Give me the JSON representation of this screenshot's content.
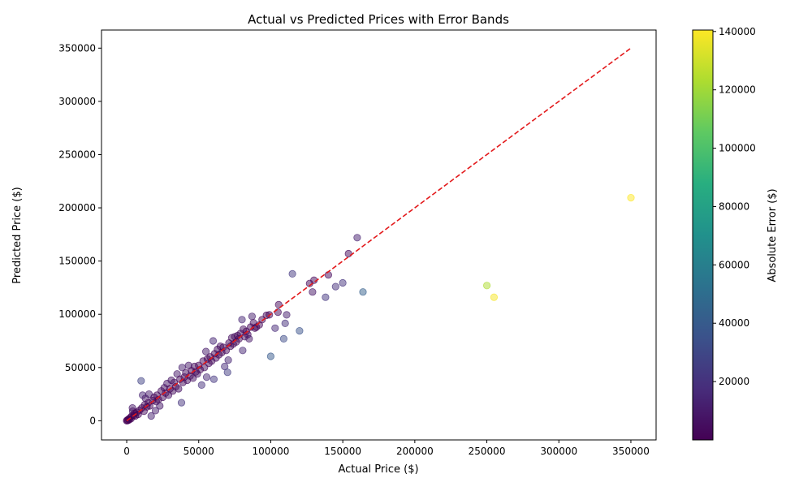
{
  "chart_data": {
    "type": "scatter",
    "title": "Actual vs Predicted Prices with Error Bands",
    "xlabel": "Actual Price ($)",
    "ylabel": "Predicted Price ($)",
    "colorbar_label": "Absolute Error ($)",
    "xlim": [
      -17500,
      367500
    ],
    "ylim": [
      -18000,
      367000
    ],
    "xticks": [
      0,
      50000,
      100000,
      150000,
      200000,
      250000,
      300000,
      350000
    ],
    "yticks": [
      0,
      50000,
      100000,
      150000,
      200000,
      250000,
      300000,
      350000
    ],
    "colorbar_range": [
      0,
      140500
    ],
    "colorbar_ticks": [
      20000,
      40000,
      60000,
      80000,
      100000,
      120000,
      140000
    ],
    "colormap": "viridis",
    "point_alpha": 0.5,
    "grid": false,
    "reference_line": {
      "style": "dashed",
      "color": "#e31a1c",
      "from": [
        0,
        0
      ],
      "to": [
        350000,
        350000
      ]
    },
    "points": [
      [
        0,
        0
      ],
      [
        300,
        500
      ],
      [
        800,
        300
      ],
      [
        1200,
        1500
      ],
      [
        1800,
        1000
      ],
      [
        2500,
        3000
      ],
      [
        3000,
        2000
      ],
      [
        3500,
        4500
      ],
      [
        4000,
        12000
      ],
      [
        4200,
        9000
      ],
      [
        5000,
        5000
      ],
      [
        5500,
        7000
      ],
      [
        6000,
        4500
      ],
      [
        7000,
        8000
      ],
      [
        8000,
        6000
      ],
      [
        9000,
        10000
      ],
      [
        10000,
        37500
      ],
      [
        10500,
        12000
      ],
      [
        11000,
        24000
      ],
      [
        12000,
        9000
      ],
      [
        12500,
        15000
      ],
      [
        13000,
        21000
      ],
      [
        14000,
        13000
      ],
      [
        15000,
        17000
      ],
      [
        15500,
        25000
      ],
      [
        16000,
        14000
      ],
      [
        17000,
        4500
      ],
      [
        18000,
        19000
      ],
      [
        19000,
        22000
      ],
      [
        20000,
        9500
      ],
      [
        20500,
        18000
      ],
      [
        21000,
        24000
      ],
      [
        22000,
        20000
      ],
      [
        23000,
        14000
      ],
      [
        24000,
        28000
      ],
      [
        25000,
        22000
      ],
      [
        26000,
        31000
      ],
      [
        27000,
        26000
      ],
      [
        28000,
        35000
      ],
      [
        29000,
        24000
      ],
      [
        30000,
        30000
      ],
      [
        31000,
        38000
      ],
      [
        32000,
        28000
      ],
      [
        33000,
        36000
      ],
      [
        34000,
        32000
      ],
      [
        35000,
        44000
      ],
      [
        36000,
        30000
      ],
      [
        37000,
        39000
      ],
      [
        38000,
        17000
      ],
      [
        38500,
        50000
      ],
      [
        39000,
        36000
      ],
      [
        40000,
        41000
      ],
      [
        41000,
        45000
      ],
      [
        42000,
        38000
      ],
      [
        43000,
        52000
      ],
      [
        44000,
        42000
      ],
      [
        45000,
        47000
      ],
      [
        46000,
        40000
      ],
      [
        47000,
        51000
      ],
      [
        48000,
        46000
      ],
      [
        49000,
        44000
      ],
      [
        50000,
        52000
      ],
      [
        51000,
        48000
      ],
      [
        52000,
        33500
      ],
      [
        53000,
        56000
      ],
      [
        54000,
        50000
      ],
      [
        55000,
        65000
      ],
      [
        55500,
        41000
      ],
      [
        56000,
        58000
      ],
      [
        57000,
        54000
      ],
      [
        58000,
        60000
      ],
      [
        59000,
        56000
      ],
      [
        60000,
        75000
      ],
      [
        60500,
        39000
      ],
      [
        61000,
        63000
      ],
      [
        62000,
        59000
      ],
      [
        63000,
        67000
      ],
      [
        64000,
        62000
      ],
      [
        65000,
        70000
      ],
      [
        66000,
        64000
      ],
      [
        67000,
        69000
      ],
      [
        68000,
        51000
      ],
      [
        69000,
        66000
      ],
      [
        70000,
        45500
      ],
      [
        70500,
        57000
      ],
      [
        71000,
        73000
      ],
      [
        72000,
        70000
      ],
      [
        73000,
        78000
      ],
      [
        74000,
        72000
      ],
      [
        75000,
        79000
      ],
      [
        76000,
        74000
      ],
      [
        77000,
        80000
      ],
      [
        78000,
        77000
      ],
      [
        79000,
        82000
      ],
      [
        80000,
        95000
      ],
      [
        80500,
        66000
      ],
      [
        81000,
        86000
      ],
      [
        82000,
        79000
      ],
      [
        83000,
        84000
      ],
      [
        84000,
        81000
      ],
      [
        85000,
        77000
      ],
      [
        86000,
        88000
      ],
      [
        87000,
        98000
      ],
      [
        88000,
        92000
      ],
      [
        89000,
        87000
      ],
      [
        90000,
        88000
      ],
      [
        92000,
        90000
      ],
      [
        94000,
        95000
      ],
      [
        97000,
        99000
      ],
      [
        99000,
        99500
      ],
      [
        100000,
        60500
      ],
      [
        103000,
        87000
      ],
      [
        105000,
        102000
      ],
      [
        105500,
        109000
      ],
      [
        109000,
        77000
      ],
      [
        110000,
        91500
      ],
      [
        111000,
        99500
      ],
      [
        115000,
        138000
      ],
      [
        120000,
        84500
      ],
      [
        127000,
        129000
      ],
      [
        129000,
        121000
      ],
      [
        130000,
        132000
      ],
      [
        138000,
        116000
      ],
      [
        140000,
        137000
      ],
      [
        145000,
        126000
      ],
      [
        150000,
        129500
      ],
      [
        154000,
        157000
      ],
      [
        160000,
        172000
      ],
      [
        164000,
        121000
      ],
      [
        250000,
        127000
      ],
      [
        255000,
        116000
      ],
      [
        350000,
        209500
      ]
    ]
  }
}
